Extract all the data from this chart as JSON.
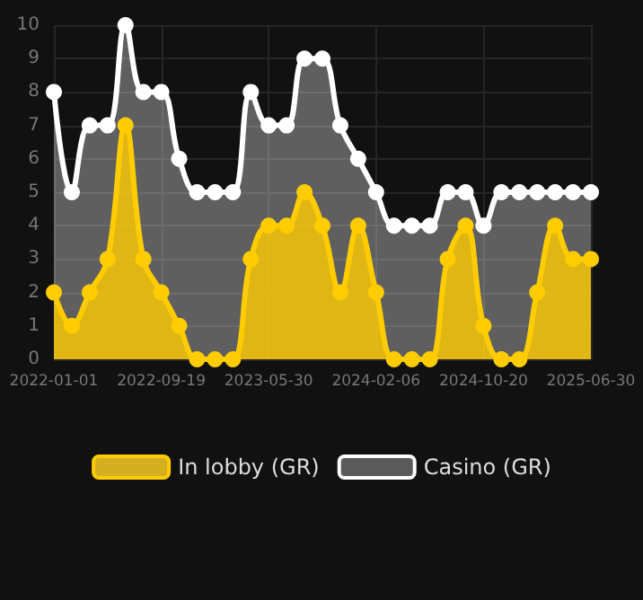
{
  "chart_data": {
    "type": "area",
    "categories": [
      "2022-01-01",
      null,
      null,
      null,
      null,
      null,
      "2022-09-19",
      null,
      null,
      null,
      null,
      null,
      "2023-05-30",
      null,
      null,
      null,
      null,
      null,
      "2024-02-06",
      null,
      null,
      null,
      null,
      null,
      "2024-10-20",
      null,
      null,
      null,
      null,
      null,
      "2025-06-30"
    ],
    "series": [
      {
        "name": "In lobby (GR)",
        "color": "#ffcc00",
        "values": [
          2,
          1,
          2,
          3,
          7,
          3,
          2,
          1,
          0,
          0,
          0,
          3,
          4,
          4,
          5,
          4,
          2,
          4,
          2,
          0,
          0,
          0,
          3,
          4,
          1,
          0,
          0,
          2,
          4,
          3,
          3
        ]
      },
      {
        "name": "Casino (GR)",
        "color": "#ffffff",
        "values": [
          8,
          5,
          7,
          7,
          10,
          8,
          8,
          6,
          5,
          5,
          5,
          8,
          7,
          7,
          9,
          9,
          7,
          6,
          5,
          4,
          4,
          4,
          5,
          5,
          4,
          5,
          5,
          5,
          5,
          5,
          5
        ]
      }
    ],
    "ylim": [
      0,
      10
    ],
    "yticks": [
      0,
      1,
      2,
      3,
      4,
      5,
      6,
      7,
      8,
      9,
      10
    ],
    "grid": true,
    "legend": "bottom",
    "marker": "circle"
  }
}
